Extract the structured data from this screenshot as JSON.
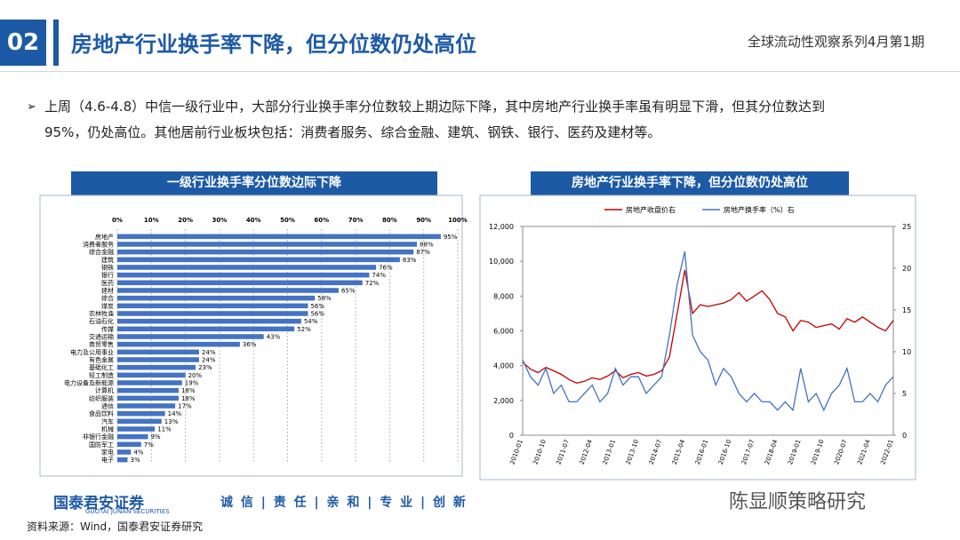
{
  "header": {
    "number": "02",
    "title": "房地产行业换手率下降，但分位数仍处高位",
    "series": "全球流动性观察系列4月第1期"
  },
  "bullet": [
    "上周（4.6-4.8）中信一级行业中，大部分行业换手率分位数较上期边际下降，其中房地产行业换手率虽有明显下滑，但其分位数达到",
    "95%，仍处高位。其他居前行业板块包括：消费者服务、综合金融、建筑、钢铁、银行、医药及建材等。"
  ],
  "chart_data": [
    {
      "type": "hbar",
      "title": "一级行业换手率分位数边际下降",
      "color": "#4472c4",
      "categories": [
        "房地产",
        "消费者服务",
        "综合金融",
        "建筑",
        "钢铁",
        "银行",
        "医药",
        "建材",
        "综合",
        "煤炭",
        "农林牧渔",
        "石油石化",
        "传媒",
        "交通运输",
        "商贸零售",
        "电力及公用事业",
        "有色金属",
        "基础化工",
        "轻工制造",
        "电力设备及新能源",
        "计算机",
        "纺织服装",
        "通信",
        "食品饮料",
        "汽车",
        "机械",
        "非银行金融",
        "国防军工",
        "家电",
        "电子"
      ],
      "values": [
        95,
        88,
        87,
        83,
        76,
        74,
        72,
        65,
        58,
        56,
        56,
        54,
        52,
        43,
        36,
        24,
        24,
        23,
        20,
        19,
        18,
        18,
        17,
        14,
        13,
        11,
        9,
        7,
        4,
        3
      ],
      "value_labels": [
        "95%",
        "88%",
        "87%",
        "83%",
        "76%",
        "74%",
        "72%",
        "65%",
        "58%",
        "56%",
        "56%",
        "54%",
        "52%",
        "43%",
        "36%",
        "24%",
        "24%",
        "23%",
        "20%",
        "19%",
        "18%",
        "18%",
        "17%",
        "14%",
        "13%",
        "11%",
        "9%",
        "7%",
        "4%",
        "3%"
      ],
      "xlim": [
        0,
        100
      ],
      "xticks": [
        {
          "value": 0,
          "label": "0%"
        },
        {
          "value": 10,
          "label": "10%"
        },
        {
          "value": 20,
          "label": "20%"
        },
        {
          "value": 30,
          "label": "30%"
        },
        {
          "value": 40,
          "label": "40%"
        },
        {
          "value": 50,
          "label": "50%"
        },
        {
          "value": 60,
          "label": "60%"
        },
        {
          "value": 70,
          "label": "70%"
        },
        {
          "value": 80,
          "label": "80%"
        },
        {
          "value": 90,
          "label": "90%"
        },
        {
          "value": 100,
          "label": "100%"
        }
      ],
      "grid": true
    },
    {
      "type": "line",
      "title": "房地产行业换手率下降，但分位数仍处高位",
      "categories": [
        "2010-01",
        null,
        null,
        "2010-10",
        null,
        null,
        "2011-07",
        null,
        null,
        "2012-04",
        null,
        null,
        "2013-01",
        null,
        null,
        "2013-10",
        null,
        null,
        "2014-07",
        null,
        null,
        "2015-04",
        null,
        null,
        "2016-01",
        null,
        null,
        "2016-10",
        null,
        null,
        "2017-07",
        null,
        null,
        "2018-04",
        null,
        null,
        "2019-01",
        null,
        null,
        "2019-10",
        null,
        null,
        "2020-07",
        null,
        null,
        "2021-04",
        null,
        null,
        "2022-01"
      ],
      "series": [
        {
          "name": "房地产收盘价右",
          "color": "#c00000",
          "values": [
            4200,
            3800,
            3600,
            3900,
            3700,
            3500,
            3200,
            3000,
            3100,
            3300,
            3200,
            3400,
            3700,
            3300,
            3500,
            3600,
            3400,
            3500,
            3700,
            4500,
            7000,
            9500,
            7000,
            7500,
            7400,
            7500,
            7600,
            7800,
            8200,
            7700,
            8000,
            8300,
            7800,
            7000,
            6800,
            6000,
            6600,
            6500,
            6200,
            6300,
            6400,
            6100,
            6700,
            6500,
            6800,
            6500,
            6200,
            6000,
            6600
          ]
        },
        {
          "name": "房地产换手率（%）右",
          "color": "#4472c4",
          "axis": "y2",
          "values": [
            9,
            7,
            6,
            8,
            5,
            6,
            4,
            4,
            5,
            6,
            4,
            5,
            8,
            6,
            7,
            7,
            5,
            6,
            7,
            12,
            18,
            22,
            12,
            10,
            9,
            6,
            8,
            7,
            5,
            4,
            5,
            4,
            4,
            3,
            4,
            3,
            8,
            4,
            5,
            3,
            5,
            6,
            8,
            4,
            4,
            5,
            4,
            6,
            7
          ]
        }
      ],
      "ylim": [
        0,
        12000
      ],
      "yticks": [
        0,
        {
          "value": 2000,
          "label": "2,000"
        },
        {
          "value": 4000,
          "label": "4,000"
        },
        {
          "value": 6000,
          "label": "6,000"
        },
        {
          "value": 8000,
          "label": "8,000"
        },
        {
          "value": 10000,
          "label": "10,000"
        },
        {
          "value": 12000,
          "label": "12,000"
        }
      ],
      "y2lim": [
        0,
        25
      ],
      "y2ticks": [
        0,
        5,
        10,
        15,
        20,
        25
      ],
      "legend": "top"
    }
  ],
  "footer": {
    "logo": "国泰君安证券",
    "logo_en": "GUOTAI JUNAN SECURITIES",
    "slogan": "诚 信 | 责 任 | 亲 和 | 专 业 | 创 新",
    "source": "资料来源：Wind，国泰君安证券研究",
    "watermark": "陈显顺策略研究"
  }
}
